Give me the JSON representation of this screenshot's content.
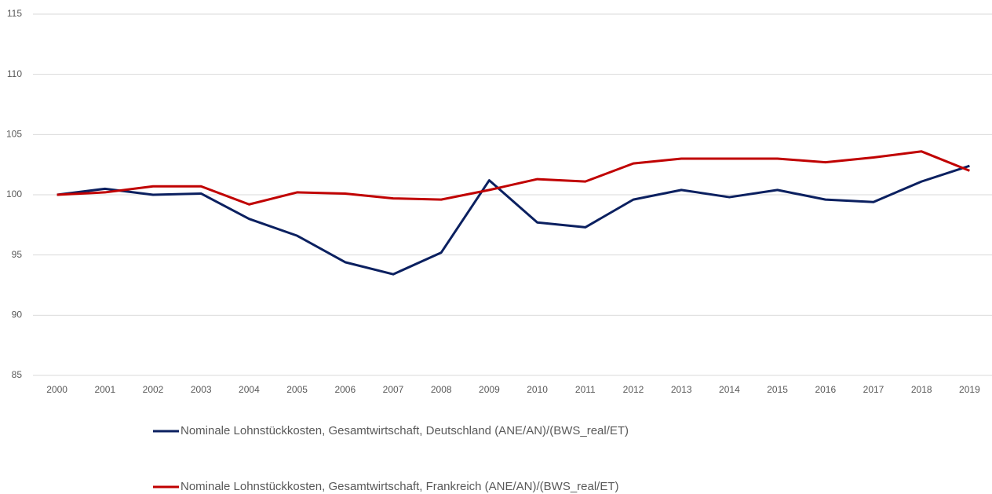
{
  "chart_data": {
    "type": "line",
    "categories": [
      "2000",
      "2001",
      "2002",
      "2003",
      "2004",
      "2005",
      "2006",
      "2007",
      "2008",
      "2009",
      "2010",
      "2011",
      "2012",
      "2013",
      "2014",
      "2015",
      "2016",
      "2017",
      "2018",
      "2019"
    ],
    "series": [
      {
        "name": "Nominale Lohnstückkosten, Gesamtwirtschaft, Deutschland (ANE/AN)/(BWS_real/ET)",
        "color": "#0b2060",
        "values": [
          100,
          100.5,
          100.0,
          100.1,
          98.0,
          96.6,
          94.4,
          93.4,
          95.2,
          101.2,
          97.7,
          97.3,
          99.6,
          100.4,
          99.8,
          100.4,
          99.6,
          99.4,
          101.1,
          102.4
        ]
      },
      {
        "name": "Nominale Lohnstückkosten, Gesamtwirtschaft, Frankreich (ANE/AN)/(BWS_real/ET)",
        "color": "#c00000",
        "values": [
          100,
          100.2,
          100.7,
          100.7,
          99.2,
          100.2,
          100.1,
          99.7,
          99.6,
          100.4,
          101.3,
          101.1,
          102.6,
          103.0,
          103.0,
          103.0,
          102.7,
          103.1,
          103.6,
          102.0
        ]
      }
    ],
    "ylim": [
      85,
      115
    ],
    "yticks": [
      85,
      90,
      95,
      100,
      105,
      110,
      115
    ],
    "grid": true,
    "legend": "bottom"
  }
}
